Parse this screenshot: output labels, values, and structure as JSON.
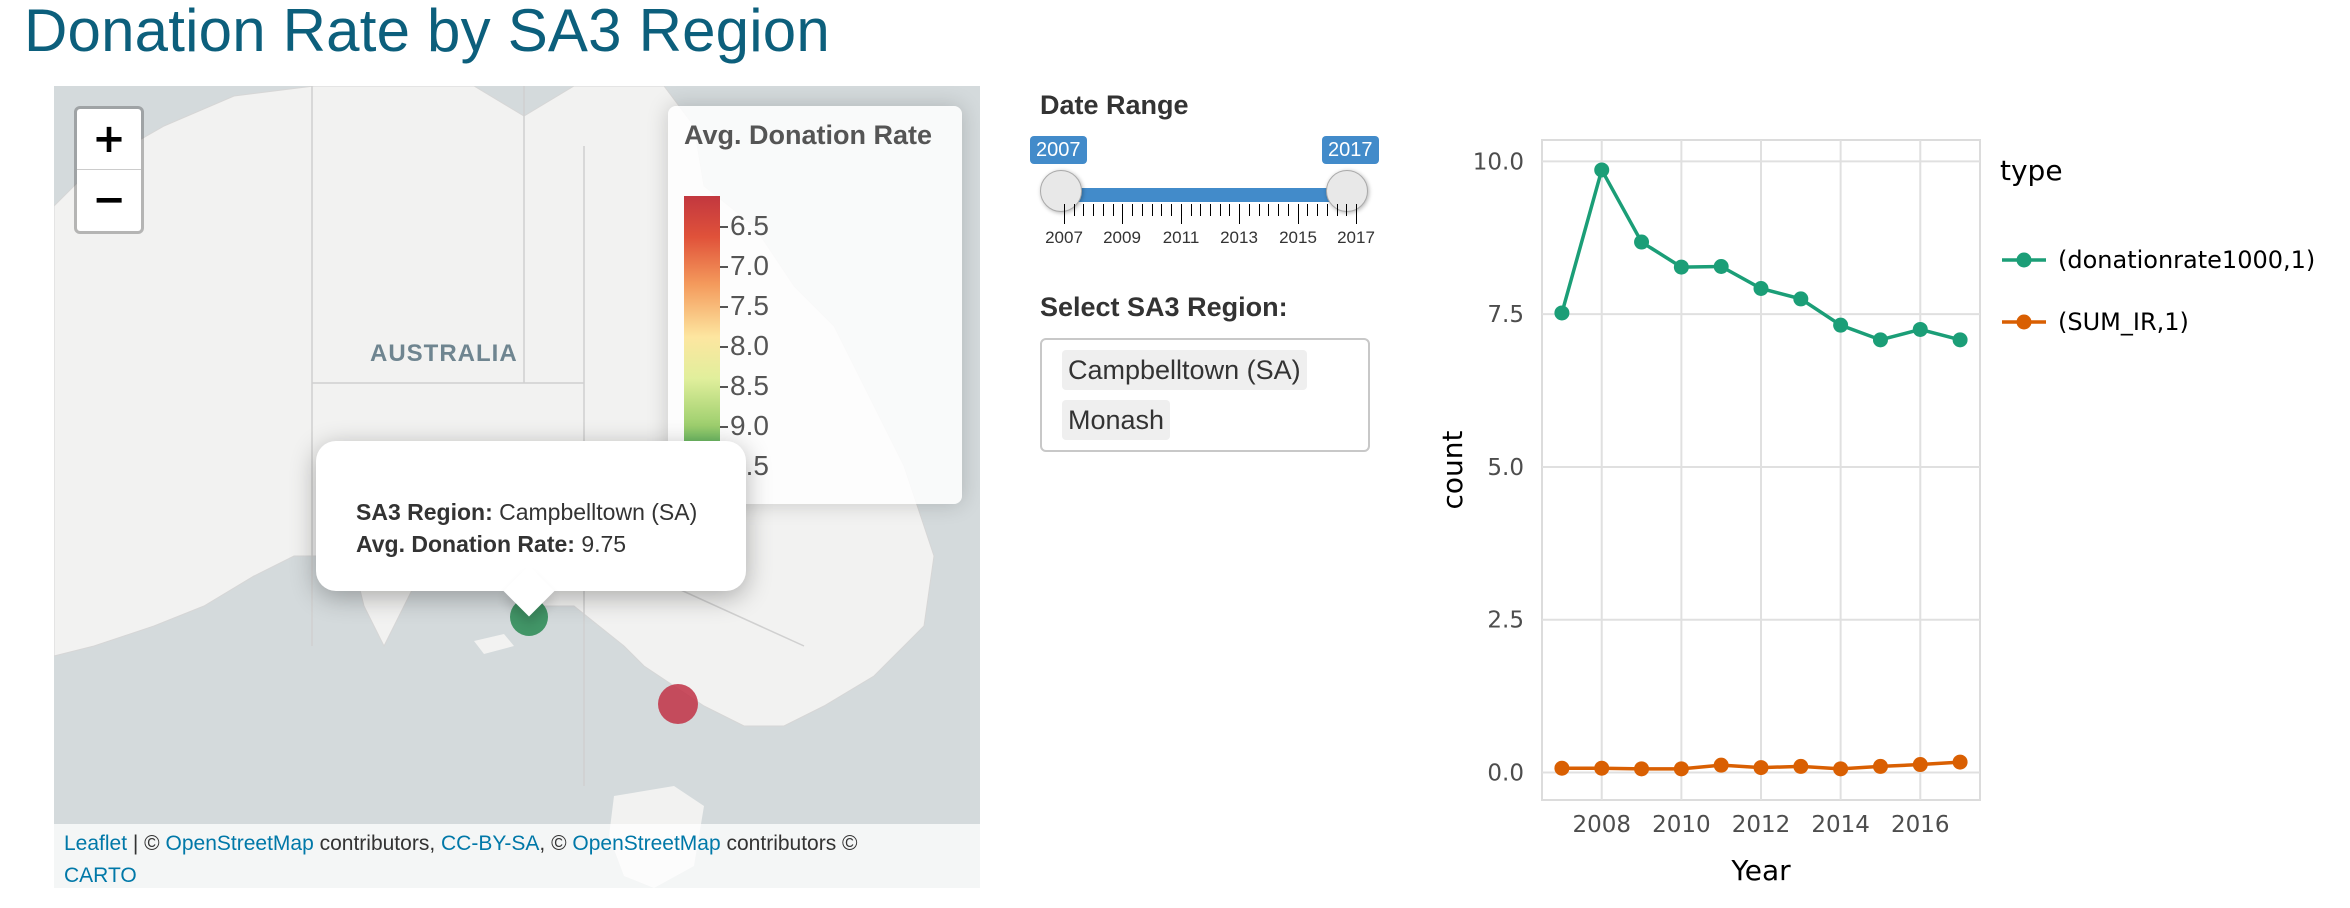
{
  "page": {
    "title": "Donation Rate by SA3 Region"
  },
  "map": {
    "zoom_in_label": "+",
    "zoom_out_label": "−",
    "place_label": "AUSTRALIA",
    "legend": {
      "title": "Avg. Donation Rate",
      "labels": [
        "6.5",
        "7.0",
        "7.5",
        "8.0",
        "8.5",
        "9.0",
        "9.5"
      ]
    },
    "popup": {
      "region_key": "SA3 Region:",
      "region_value": "Campbelltown (SA)",
      "rate_key": "Avg. Donation Rate:",
      "rate_value": "9.75"
    },
    "markers": [
      {
        "name": "Campbelltown (SA)",
        "color": "#2e8b57"
      },
      {
        "name": "Monash",
        "color": "#c2374a"
      }
    ],
    "attribution": {
      "leaflet": "Leaflet",
      "sep1": " | © ",
      "osm1": "OpenStreetMap",
      "text1": " contributors, ",
      "ccbysa": "CC-BY-SA",
      "sep2": ", © ",
      "osm2": "OpenStreetMap",
      "text2": " contributors © ",
      "carto": "CARTO"
    }
  },
  "date_range": {
    "label": "Date Range",
    "from": "2007",
    "to": "2017",
    "grid_labels": [
      "2007",
      "2009",
      "2011",
      "2013",
      "2015",
      "2017"
    ]
  },
  "select_region": {
    "label": "Select SA3 Region:",
    "selected": [
      "Campbelltown (SA)",
      "Monash"
    ]
  },
  "chart_data": {
    "type": "line",
    "xlabel": "Year",
    "ylabel": "count",
    "x": [
      2007,
      2008,
      2009,
      2010,
      2011,
      2012,
      2013,
      2014,
      2015,
      2016,
      2017
    ],
    "x_ticks": [
      2008,
      2010,
      2012,
      2014,
      2016
    ],
    "y_ticks": [
      0.0,
      2.5,
      5.0,
      7.5,
      10.0
    ],
    "y_tick_labels": [
      "0.0",
      "2.5",
      "5.0",
      "7.5",
      "10.0"
    ],
    "xlim": [
      2006.5,
      2017.5
    ],
    "ylim": [
      -0.45,
      10.35
    ],
    "grid": true,
    "legend_title": "type",
    "legend_position": "right",
    "series": [
      {
        "name": "(donationrate1000,1)",
        "color": "#1b9e77",
        "values": [
          7.52,
          9.86,
          8.68,
          8.27,
          8.28,
          7.92,
          7.75,
          7.32,
          7.08,
          7.25,
          7.08
        ]
      },
      {
        "name": "(SUM_IR,1)",
        "color": "#d95f02",
        "values": [
          0.07,
          0.07,
          0.06,
          0.06,
          0.12,
          0.08,
          0.1,
          0.06,
          0.1,
          0.13,
          0.17
        ]
      }
    ]
  }
}
